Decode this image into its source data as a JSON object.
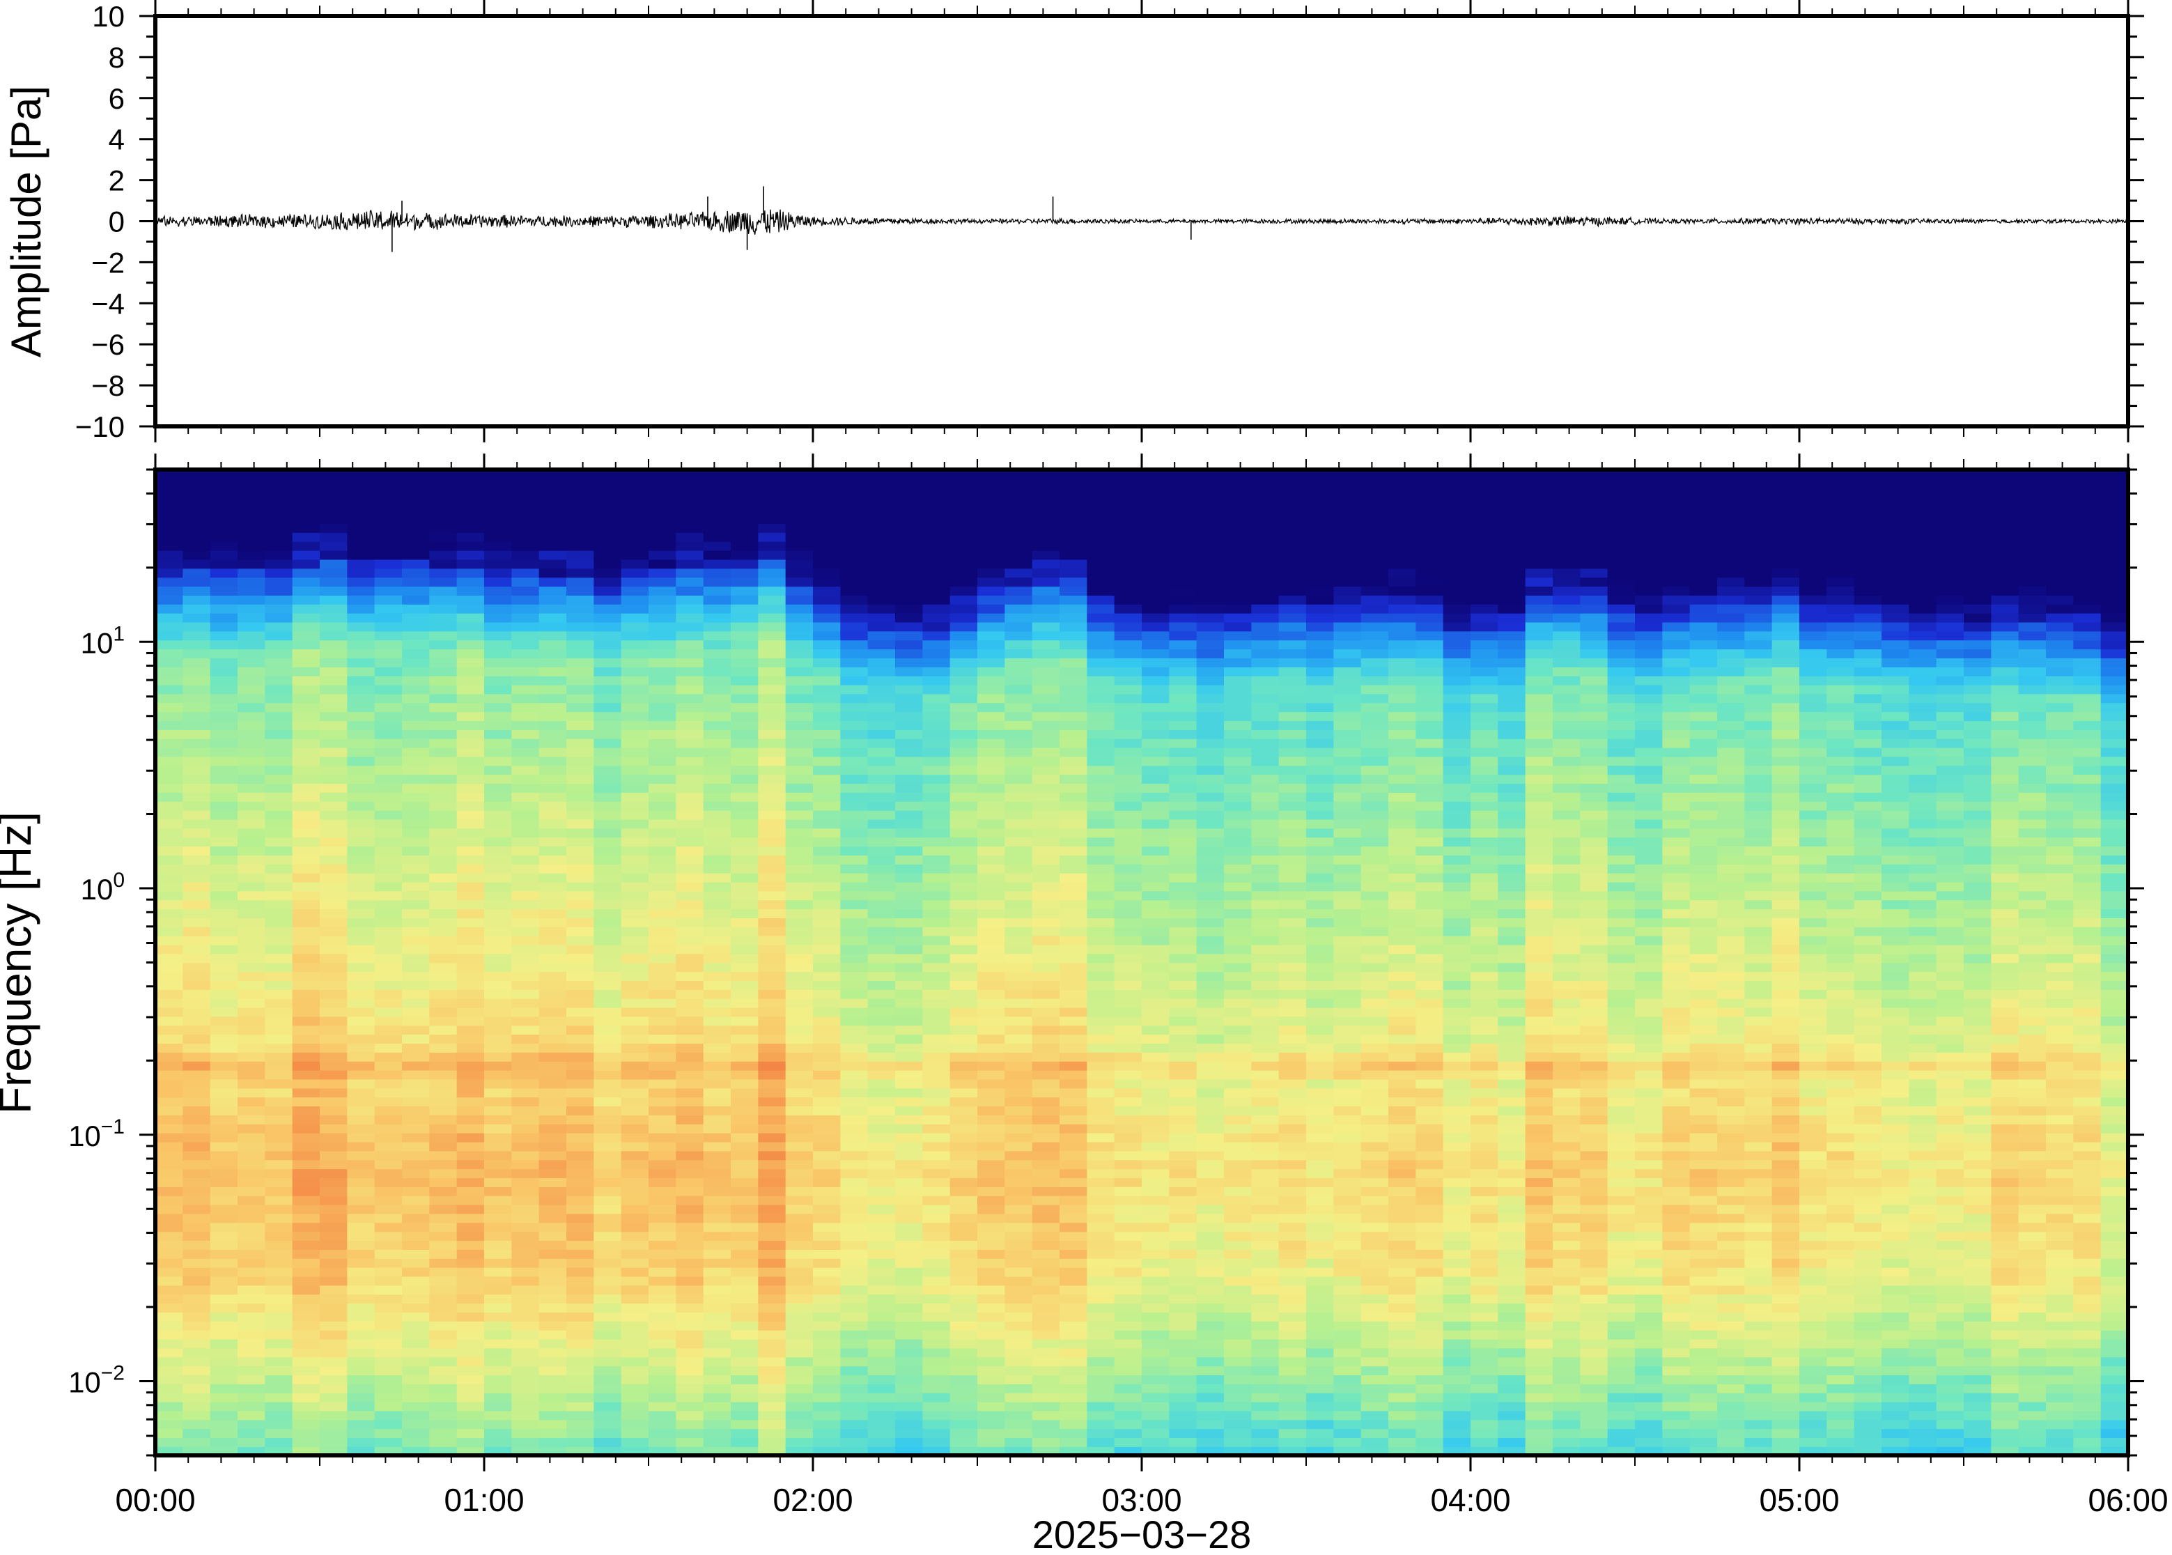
{
  "chart_data": [
    {
      "type": "line",
      "panel": "waveform",
      "ylabel": "Amplitude [Pa]",
      "ylim": [
        -10,
        10
      ],
      "yticks": [
        10,
        8,
        6,
        4,
        2,
        0,
        -2,
        -4,
        -6,
        -8,
        -10
      ],
      "ytick_labels": [
        "10",
        "8",
        "6",
        "4",
        "2",
        "0",
        "−2",
        "−4",
        "−6",
        "−8",
        "−10"
      ],
      "x_hours_range": [
        0,
        6
      ],
      "trace_envelope": [
        {
          "t": 0.0,
          "amp": 0.25
        },
        {
          "t": 0.25,
          "amp": 0.35
        },
        {
          "t": 0.5,
          "amp": 0.4
        },
        {
          "t": 0.7,
          "amp": 0.65
        },
        {
          "t": 0.8,
          "amp": 0.45
        },
        {
          "t": 1.0,
          "amp": 0.35
        },
        {
          "t": 1.25,
          "amp": 0.3
        },
        {
          "t": 1.5,
          "amp": 0.35
        },
        {
          "t": 1.67,
          "amp": 0.5
        },
        {
          "t": 1.85,
          "amp": 0.8
        },
        {
          "t": 2.0,
          "amp": 0.25
        },
        {
          "t": 2.5,
          "amp": 0.12
        },
        {
          "t": 2.75,
          "amp": 0.15
        },
        {
          "t": 3.0,
          "amp": 0.1
        },
        {
          "t": 3.5,
          "amp": 0.12
        },
        {
          "t": 4.0,
          "amp": 0.15
        },
        {
          "t": 4.3,
          "amp": 0.3
        },
        {
          "t": 4.6,
          "amp": 0.12
        },
        {
          "t": 5.0,
          "amp": 0.18
        },
        {
          "t": 5.5,
          "amp": 0.12
        },
        {
          "t": 6.0,
          "amp": 0.1
        }
      ],
      "spikes": [
        {
          "t": 0.72,
          "amp": -1.5
        },
        {
          "t": 0.75,
          "amp": 1.0
        },
        {
          "t": 1.68,
          "amp": 1.2
        },
        {
          "t": 1.8,
          "amp": -1.4
        },
        {
          "t": 1.85,
          "amp": 1.7
        },
        {
          "t": 2.73,
          "amp": 1.2
        },
        {
          "t": 3.15,
          "amp": -0.9
        }
      ]
    },
    {
      "type": "heatmap",
      "panel": "spectrogram",
      "ylabel": "Frequency [Hz]",
      "yscale": "log",
      "ylim": [
        0.005,
        50
      ],
      "ytick_base": "10",
      "yticks": [
        {
          "value": 10,
          "exp": "1"
        },
        {
          "value": 1,
          "exp": "0"
        },
        {
          "value": 0.1,
          "exp": "−1"
        },
        {
          "value": 0.01,
          "exp": "−2"
        }
      ],
      "xlabel": "2025−03−28",
      "x_hours_range": [
        0,
        6
      ],
      "xtick_labels": [
        "00:00",
        "01:00",
        "02:00",
        "03:00",
        "04:00",
        "05:00",
        "06:00"
      ],
      "colormap": "jet",
      "colormap_stops": [
        "#0d0679",
        "#1a2fd6",
        "#1f8ff0",
        "#35c9f0",
        "#6de6c2",
        "#b8f08f",
        "#f4ef86",
        "#f9c768",
        "#f5924b",
        "#e8502f"
      ],
      "intensity_columns": [
        {
          "t": 0.0,
          "level": 0.78
        },
        {
          "t": 0.3,
          "level": 0.82
        },
        {
          "t": 0.7,
          "level": 0.9
        },
        {
          "t": 1.0,
          "level": 0.82
        },
        {
          "t": 1.3,
          "level": 0.78
        },
        {
          "t": 1.6,
          "level": 0.82
        },
        {
          "t": 1.85,
          "level": 0.95
        },
        {
          "t": 2.05,
          "level": 0.62
        },
        {
          "t": 2.4,
          "level": 0.5
        },
        {
          "t": 2.6,
          "level": 0.7
        },
        {
          "t": 2.75,
          "level": 0.78
        },
        {
          "t": 3.0,
          "level": 0.55
        },
        {
          "t": 3.4,
          "level": 0.6
        },
        {
          "t": 3.75,
          "level": 0.65
        },
        {
          "t": 4.05,
          "level": 0.5
        },
        {
          "t": 4.3,
          "level": 0.75
        },
        {
          "t": 4.6,
          "level": 0.55
        },
        {
          "t": 4.9,
          "level": 0.68
        },
        {
          "t": 5.3,
          "level": 0.58
        },
        {
          "t": 5.75,
          "level": 0.5
        },
        {
          "t": 6.0,
          "level": 0.45
        }
      ],
      "spectral_peak_hz": 0.07,
      "microbarom_band_hz": 0.19,
      "upper_cutoff_hz_range": [
        9,
        25
      ]
    }
  ]
}
